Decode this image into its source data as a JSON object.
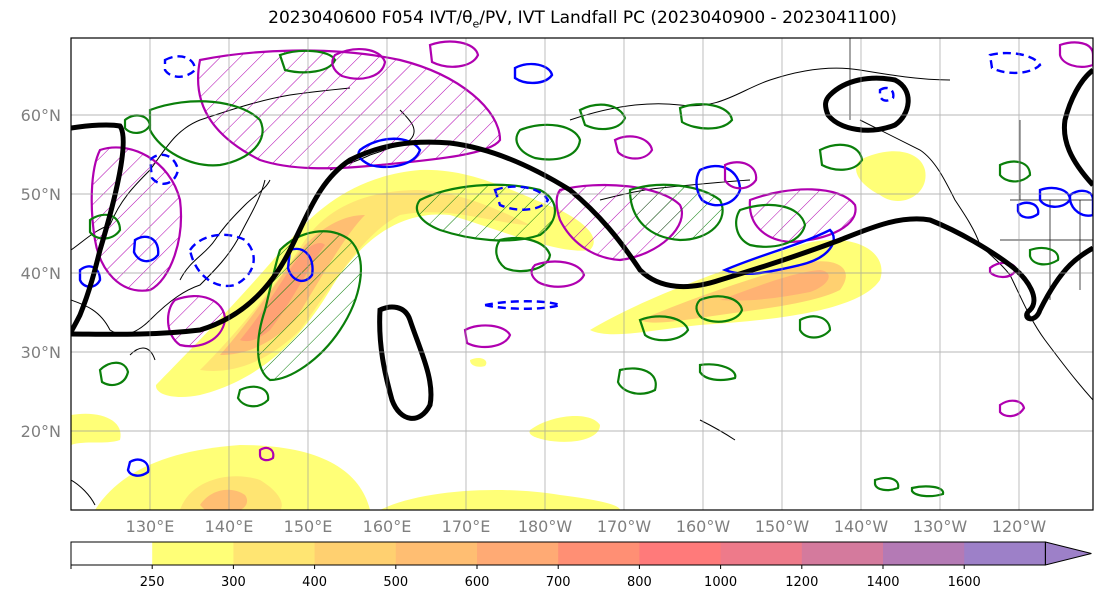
{
  "title_main": "2023040600 F054 IVT/",
  "title_theta": "θ",
  "title_sub": "e",
  "title_rest": "/PV, IVT Landfall PC (2023040900 - 2023041100)",
  "lat_labels": [
    "60°N",
    "50°N",
    "40°N",
    "30°N",
    "20°N"
  ],
  "lon_labels": [
    "130°E",
    "140°E",
    "150°E",
    "160°E",
    "170°E",
    "180°W",
    "170°W",
    "160°W",
    "150°W",
    "140°W",
    "130°W",
    "120°W"
  ],
  "colorbar": {
    "levels": [
      "250",
      "300",
      "400",
      "500",
      "600",
      "700",
      "800",
      "1000",
      "1200",
      "1400",
      "1600"
    ],
    "colors": [
      "#ffffff",
      "#ffff77",
      "#ffe572",
      "#ffd070",
      "#ffbe72",
      "#ffaa74",
      "#ff8f74",
      "#ff7a7a",
      "#ee7a8a",
      "#d47a9d",
      "#b47ab5",
      "#9d80c8"
    ]
  },
  "contour_colors": {
    "ivt_pc": "#000000",
    "theta_e": "#0a7f0a",
    "pv_pos": "#b000b0",
    "pv_neg": "#0000ff"
  }
}
